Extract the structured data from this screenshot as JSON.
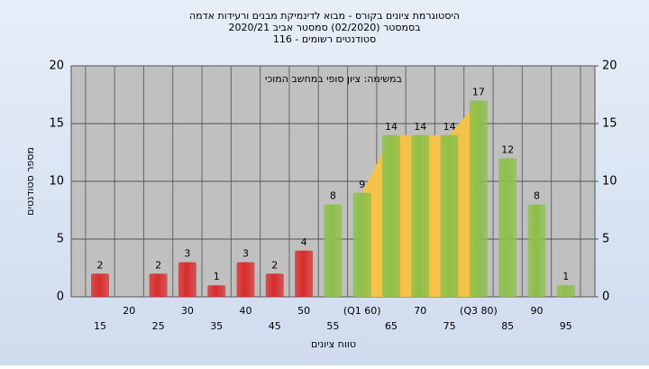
{
  "chart_data": {
    "type": "bar",
    "title": [
      "היסטוגרמת ציונים בקורס - מבוא לדינמיקת מבנים ורעידות אדמה",
      "בסמסטר (02/2020) סמסטר אביב 2020/21",
      "סטודנטים רשומים - 116"
    ],
    "annotation": "במשימה: ציון סופי במחשב המוכי",
    "x_label": "טווח ציונים",
    "y_label": "מספר סטודנטים",
    "categories": [
      "15",
      "20",
      "25",
      "30",
      "35",
      "40",
      "45",
      "50",
      "55",
      "(Q1 60)",
      "65",
      "70",
      "75",
      "(Q3 80)",
      "85",
      "90",
      "95"
    ],
    "values": [
      2,
      null,
      2,
      3,
      1,
      3,
      2,
      4,
      8,
      9,
      14,
      14,
      14,
      17,
      12,
      8,
      1
    ],
    "colors": [
      "#d92b2b",
      "#d92b2b",
      "#d92b2b",
      "#d92b2b",
      "#d92b2b",
      "#d92b2b",
      "#d92b2b",
      "#d92b2b",
      "#8cc04a",
      "#8cc04a",
      "#8cc04a",
      "#8cc04a",
      "#8cc04a",
      "#8cc04a",
      "#8cc04a",
      "#8cc04a",
      "#8cc04a"
    ],
    "area_color": "#f5c24a",
    "ylim": [
      0,
      20
    ],
    "yticks": [
      0,
      5,
      10,
      15,
      20
    ],
    "y2lim": [
      0,
      20
    ],
    "y2ticks": [
      0,
      5,
      10,
      15,
      20
    ],
    "grid": true
  }
}
